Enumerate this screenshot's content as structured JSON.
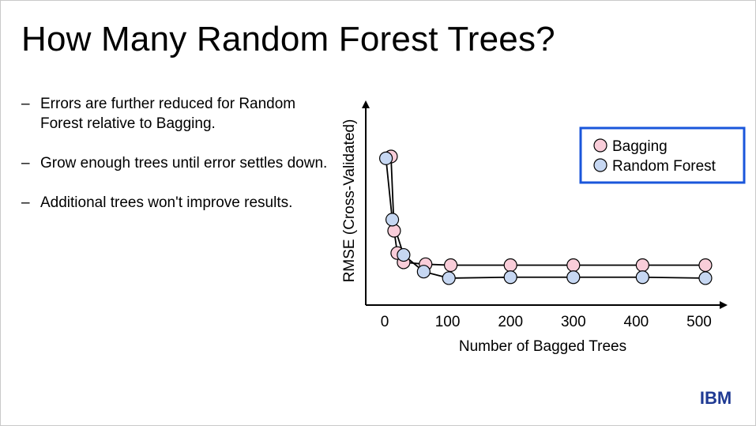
{
  "slide": {
    "title": "How Many Random Forest Trees?",
    "bullets": [
      {
        "dash": "–",
        "text": "Errors are further reduced for Random Forest relative to Bagging."
      },
      {
        "dash": "–",
        "text": "Grow enough trees until error settles down."
      },
      {
        "dash": "–",
        "text": "Additional trees won't improve results."
      }
    ],
    "logo": "IBM"
  },
  "colors": {
    "bagging": "#f9cdd9",
    "random_forest": "#c6d7f2",
    "legend_border": "#1a56db",
    "axis": "#000000"
  },
  "chart_data": {
    "type": "line",
    "title": "",
    "xlabel": "Number of Bagged Trees",
    "ylabel": "RMSE (Cross-Validated)",
    "xlim": [
      -30,
      550
    ],
    "ylim": [
      0,
      1
    ],
    "x_ticks": [
      0,
      100,
      200,
      300,
      400,
      500
    ],
    "y_ticks_shown": false,
    "legend": "top-right",
    "grid": false,
    "series": [
      {
        "name": "Bagging",
        "color": "#f9cdd9",
        "x": [
          10,
          15,
          20,
          30,
          65,
          105,
          200,
          300,
          410,
          510
        ],
        "y": [
          0.8,
          0.4,
          0.28,
          0.23,
          0.22,
          0.215,
          0.215,
          0.215,
          0.215,
          0.215
        ]
      },
      {
        "name": "Random Forest",
        "color": "#c6d7f2",
        "x": [
          2,
          12,
          30,
          62,
          102,
          200,
          300,
          410,
          510
        ],
        "y": [
          0.79,
          0.46,
          0.27,
          0.18,
          0.145,
          0.15,
          0.15,
          0.15,
          0.145
        ]
      }
    ]
  }
}
